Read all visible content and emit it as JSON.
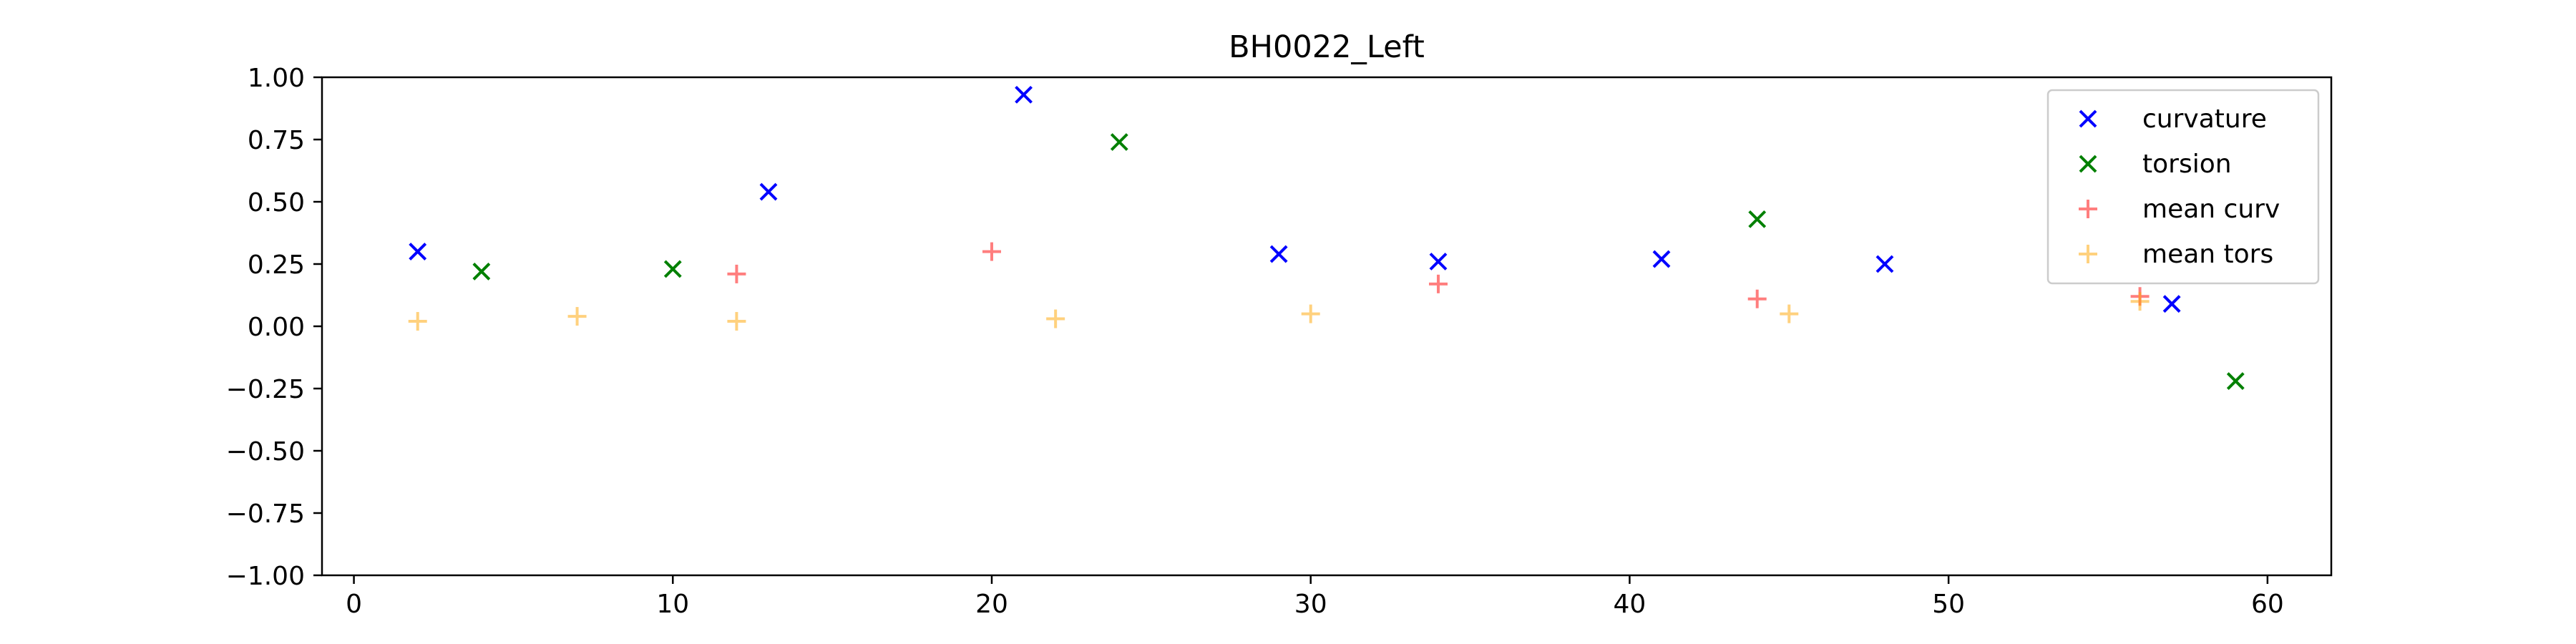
{
  "chart_data": {
    "type": "scatter",
    "title": "BH0022_Left",
    "xlabel": "",
    "ylabel": "",
    "xlim": [
      -1,
      62
    ],
    "ylim": [
      -1.0,
      1.0
    ],
    "xticks": [
      0,
      10,
      20,
      30,
      40,
      50,
      60
    ],
    "xtick_labels": [
      "0",
      "10",
      "20",
      "30",
      "40",
      "50",
      "60"
    ],
    "yticks": [
      -1.0,
      -0.75,
      -0.5,
      -0.25,
      0.0,
      0.25,
      0.5,
      0.75,
      1.0
    ],
    "ytick_labels": [
      "−1.00",
      "−0.75",
      "−0.50",
      "−0.25",
      "0.00",
      "0.25",
      "0.50",
      "0.75",
      "1.00"
    ],
    "grid": false,
    "legend_position": "top-right",
    "series": [
      {
        "name": "curvature",
        "marker": "x",
        "color": "#0000ff",
        "alpha": 1.0,
        "points": [
          [
            2,
            0.3
          ],
          [
            13,
            0.54
          ],
          [
            21,
            0.93
          ],
          [
            29,
            0.29
          ],
          [
            34,
            0.26
          ],
          [
            41,
            0.27
          ],
          [
            48,
            0.25
          ],
          [
            57,
            0.09
          ]
        ]
      },
      {
        "name": "torsion",
        "marker": "x",
        "color": "#008000",
        "alpha": 1.0,
        "points": [
          [
            4,
            0.22
          ],
          [
            10,
            0.23
          ],
          [
            24,
            0.74
          ],
          [
            44,
            0.43
          ],
          [
            59,
            -0.22
          ]
        ]
      },
      {
        "name": "mean curv",
        "marker": "+",
        "color": "#ff0000",
        "alpha": 0.5,
        "points": [
          [
            12,
            0.21
          ],
          [
            20,
            0.3
          ],
          [
            34,
            0.17
          ],
          [
            44,
            0.11
          ],
          [
            56,
            0.12
          ]
        ]
      },
      {
        "name": "mean tors",
        "marker": "+",
        "color": "#ffa500",
        "alpha": 0.5,
        "points": [
          [
            2,
            0.02
          ],
          [
            7,
            0.04
          ],
          [
            12,
            0.02
          ],
          [
            22,
            0.03
          ],
          [
            30,
            0.05
          ],
          [
            45,
            0.05
          ],
          [
            56,
            0.1
          ]
        ]
      }
    ]
  }
}
